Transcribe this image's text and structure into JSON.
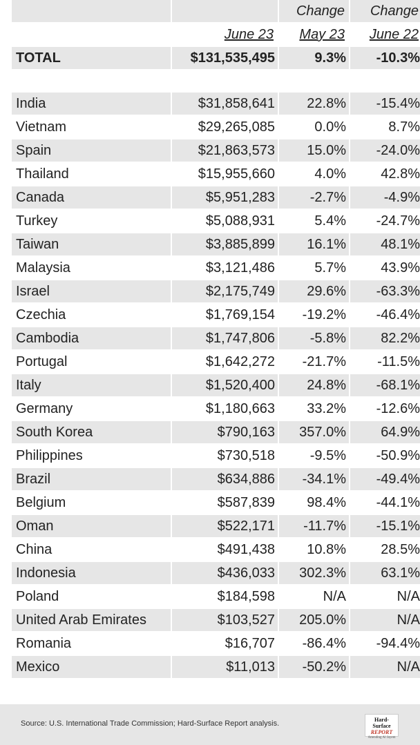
{
  "header": {
    "row1": [
      "",
      "",
      "Change",
      "Change"
    ],
    "row2": [
      "",
      "June 23",
      "May 23",
      "June 22"
    ]
  },
  "total": {
    "label": "TOTAL",
    "value": "$131,535,495",
    "mom": "9.3%",
    "yoy": "-10.3%"
  },
  "rows": [
    {
      "country": "India",
      "value": "$31,858,641",
      "mom": "22.8%",
      "yoy": "-15.4%"
    },
    {
      "country": "Vietnam",
      "value": "$29,265,085",
      "mom": "0.0%",
      "yoy": "8.7%"
    },
    {
      "country": "Spain",
      "value": "$21,863,573",
      "mom": "15.0%",
      "yoy": "-24.0%"
    },
    {
      "country": "Thailand",
      "value": "$15,955,660",
      "mom": "4.0%",
      "yoy": "42.8%"
    },
    {
      "country": "Canada",
      "value": "$5,951,283",
      "mom": "-2.7%",
      "yoy": "-4.9%"
    },
    {
      "country": "Turkey",
      "value": "$5,088,931",
      "mom": "5.4%",
      "yoy": "-24.7%"
    },
    {
      "country": "Taiwan",
      "value": "$3,885,899",
      "mom": "16.1%",
      "yoy": "48.1%"
    },
    {
      "country": "Malaysia",
      "value": "$3,121,486",
      "mom": "5.7%",
      "yoy": "43.9%"
    },
    {
      "country": "Israel",
      "value": "$2,175,749",
      "mom": "29.6%",
      "yoy": "-63.3%"
    },
    {
      "country": "Czechia",
      "value": "$1,769,154",
      "mom": "-19.2%",
      "yoy": "-46.4%"
    },
    {
      "country": "Cambodia",
      "value": "$1,747,806",
      "mom": "-5.8%",
      "yoy": "82.2%"
    },
    {
      "country": "Portugal",
      "value": "$1,642,272",
      "mom": "-21.7%",
      "yoy": "-11.5%"
    },
    {
      "country": "Italy",
      "value": "$1,520,400",
      "mom": "24.8%",
      "yoy": "-68.1%"
    },
    {
      "country": "Germany",
      "value": "$1,180,663",
      "mom": "33.2%",
      "yoy": "-12.6%"
    },
    {
      "country": "South Korea",
      "value": "$790,163",
      "mom": "357.0%",
      "yoy": "64.9%"
    },
    {
      "country": "Philippines",
      "value": "$730,518",
      "mom": "-9.5%",
      "yoy": "-50.9%"
    },
    {
      "country": "Brazil",
      "value": "$634,886",
      "mom": "-34.1%",
      "yoy": "-49.4%"
    },
    {
      "country": "Belgium",
      "value": "$587,839",
      "mom": "98.4%",
      "yoy": "-44.1%"
    },
    {
      "country": "Oman",
      "value": "$522,171",
      "mom": "-11.7%",
      "yoy": "-15.1%"
    },
    {
      "country": "China",
      "value": "$491,438",
      "mom": "10.8%",
      "yoy": "28.5%"
    },
    {
      "country": "Indonesia",
      "value": "$436,033",
      "mom": "302.3%",
      "yoy": "63.1%"
    },
    {
      "country": "Poland",
      "value": "$184,598",
      "mom": "N/A",
      "yoy": "N/A"
    },
    {
      "country": "United Arab Emirates",
      "value": "$103,527",
      "mom": "205.0%",
      "yoy": "N/A"
    },
    {
      "country": "Romania",
      "value": "$16,707",
      "mom": "-86.4%",
      "yoy": "-94.4%"
    },
    {
      "country": "Mexico",
      "value": "$11,013",
      "mom": "-50.2%",
      "yoy": "N/A"
    }
  ],
  "footer": {
    "source": "Source: U.S. International Trade Commission; Hard-Surface Report analysis.",
    "logo_line1": "Hard-Surface",
    "logo_line2": "REPORT",
    "logo_line3": "Attending Al Jayem"
  }
}
